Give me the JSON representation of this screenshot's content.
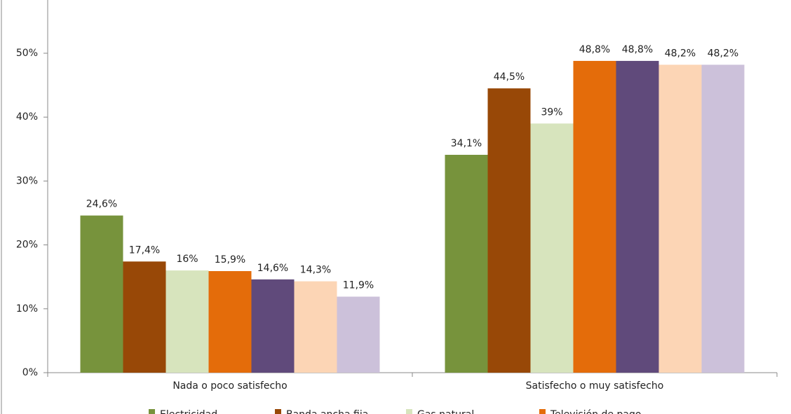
{
  "chart_data": {
    "type": "bar",
    "categories": [
      "Nada o poco satisfecho",
      "Satisfecho o muy satisfecho"
    ],
    "series": [
      {
        "name": "Electricidad",
        "color": "#77933c",
        "values": [
          24.6,
          34.1
        ],
        "value_labels": [
          "24,6%",
          "34,1%"
        ]
      },
      {
        "name": "Banda ancha fija",
        "color": "#984807",
        "values": [
          17.4,
          44.5
        ],
        "value_labels": [
          "17,4%",
          "44,5%"
        ]
      },
      {
        "name": "Gas natural",
        "color": "#d7e4bd",
        "values": [
          16,
          39
        ],
        "value_labels": [
          "16%",
          "39%"
        ]
      },
      {
        "name": "Televisión de pago",
        "color": "#e46c0a",
        "values": [
          15.9,
          48.8
        ],
        "value_labels": [
          "15,9%",
          "48,8%"
        ]
      },
      {
        "color": "#604a7b",
        "values": [
          14.6,
          48.8
        ],
        "value_labels": [
          "14,6%",
          "48,8%"
        ]
      },
      {
        "color": "#fcd5b5",
        "values": [
          14.3,
          48.2
        ],
        "value_labels": [
          "14,3%",
          "48,2%"
        ]
      },
      {
        "color": "#ccc1da",
        "values": [
          11.9,
          48.2
        ],
        "value_labels": [
          "11,9%",
          "48,2%"
        ]
      }
    ],
    "ylim": [
      0,
      60
    ],
    "yticks": [
      {
        "value": 0,
        "label": "0%"
      },
      {
        "value": 10,
        "label": "10%"
      },
      {
        "value": 20,
        "label": "20%"
      },
      {
        "value": 30,
        "label": "30%"
      },
      {
        "value": 40,
        "label": "40%"
      },
      {
        "value": 50,
        "label": "50%"
      }
    ],
    "grid": false
  }
}
